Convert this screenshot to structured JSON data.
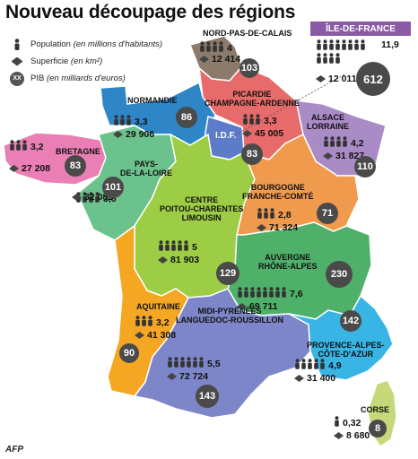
{
  "title": "Nouveau découpage des régions",
  "legend": {
    "population": "Population",
    "population_unit": "(en millions d'habitants)",
    "area": "Superficie",
    "area_unit": "(en km²)",
    "gdp_badge": "XX",
    "gdp": "PIB",
    "gdp_unit": "(en milliards d'euros)"
  },
  "idf_header": "ÎLE-DE-FRANCE",
  "idf_map_label": "I.D.F.",
  "credit": "AFP",
  "colors": {
    "bretagne": "#e97fb4",
    "normandie": "#2f86c6",
    "nord": "#8c7b6b",
    "picardie": "#e86b6b",
    "idf": "#5c7bc8",
    "alsace": "#a98bc6",
    "pays": "#6cc28d",
    "centre": "#9ccd45",
    "bourgogne": "#f09a4d",
    "aquitaine": "#f5a623",
    "midi": "#7c86c8",
    "auvergne": "#4fb06a",
    "paca": "#38b4e5",
    "corse": "#c6d97a"
  },
  "regions": [
    {
      "id": "nord",
      "name": "NORD-PAS-DE-CALAIS",
      "population": "4",
      "area": "12 414",
      "gdp": "103"
    },
    {
      "id": "idf",
      "name": "ÎLE-DE-FRANCE",
      "population": "11,9",
      "area": "12 011",
      "gdp": "612"
    },
    {
      "id": "normandie",
      "name": "NORMANDIE",
      "population": "3,3",
      "area": "29 906",
      "gdp": "86"
    },
    {
      "id": "picardie",
      "name": "PICARDIE\nCHAMPAGNE-ARDENNE",
      "population": "3,3",
      "area": "45 005",
      "gdp": "83"
    },
    {
      "id": "alsace",
      "name": "ALSACE\nLORRAINE",
      "population": "4,2",
      "area": "31 827",
      "gdp": "110"
    },
    {
      "id": "bretagne",
      "name": "BRETAGNE",
      "population": "3,2",
      "area": "27 208",
      "gdp": "83"
    },
    {
      "id": "pays",
      "name": "PAYS-\nDE-LA-LOIRE",
      "population": "3,6",
      "area": "32 082",
      "gdp": "101"
    },
    {
      "id": "centre",
      "name": "CENTRE\nPOITOU-CHARENTES\nLIMOUSIN",
      "population": "5",
      "area": "81 903",
      "gdp": "129"
    },
    {
      "id": "bourgogne",
      "name": "BOURGOGNE\nFRANCHE-COMTÉ",
      "population": "2,8",
      "area": "71 324",
      "gdp": "71"
    },
    {
      "id": "auvergne",
      "name": "AUVERGNE\nRHÔNE-ALPES",
      "population": "7,6",
      "area": "69 711",
      "gdp": "230"
    },
    {
      "id": "aquitaine",
      "name": "AQUITAINE",
      "population": "3,2",
      "area": "41 308",
      "gdp": "90"
    },
    {
      "id": "midi",
      "name": "MIDI-PYRÉNÉES\nLANGUEDOC-ROUSSILLON",
      "population": "5,5",
      "area": "72 724",
      "gdp": "143"
    },
    {
      "id": "paca",
      "name": "PROVENCE-ALPES-\nCÔTE-D'AZUR",
      "population": "4,9",
      "area": "31 400",
      "gdp": "142"
    },
    {
      "id": "corse",
      "name": "CORSE",
      "population": "0,32",
      "area": "8 680",
      "gdp": "8"
    }
  ]
}
